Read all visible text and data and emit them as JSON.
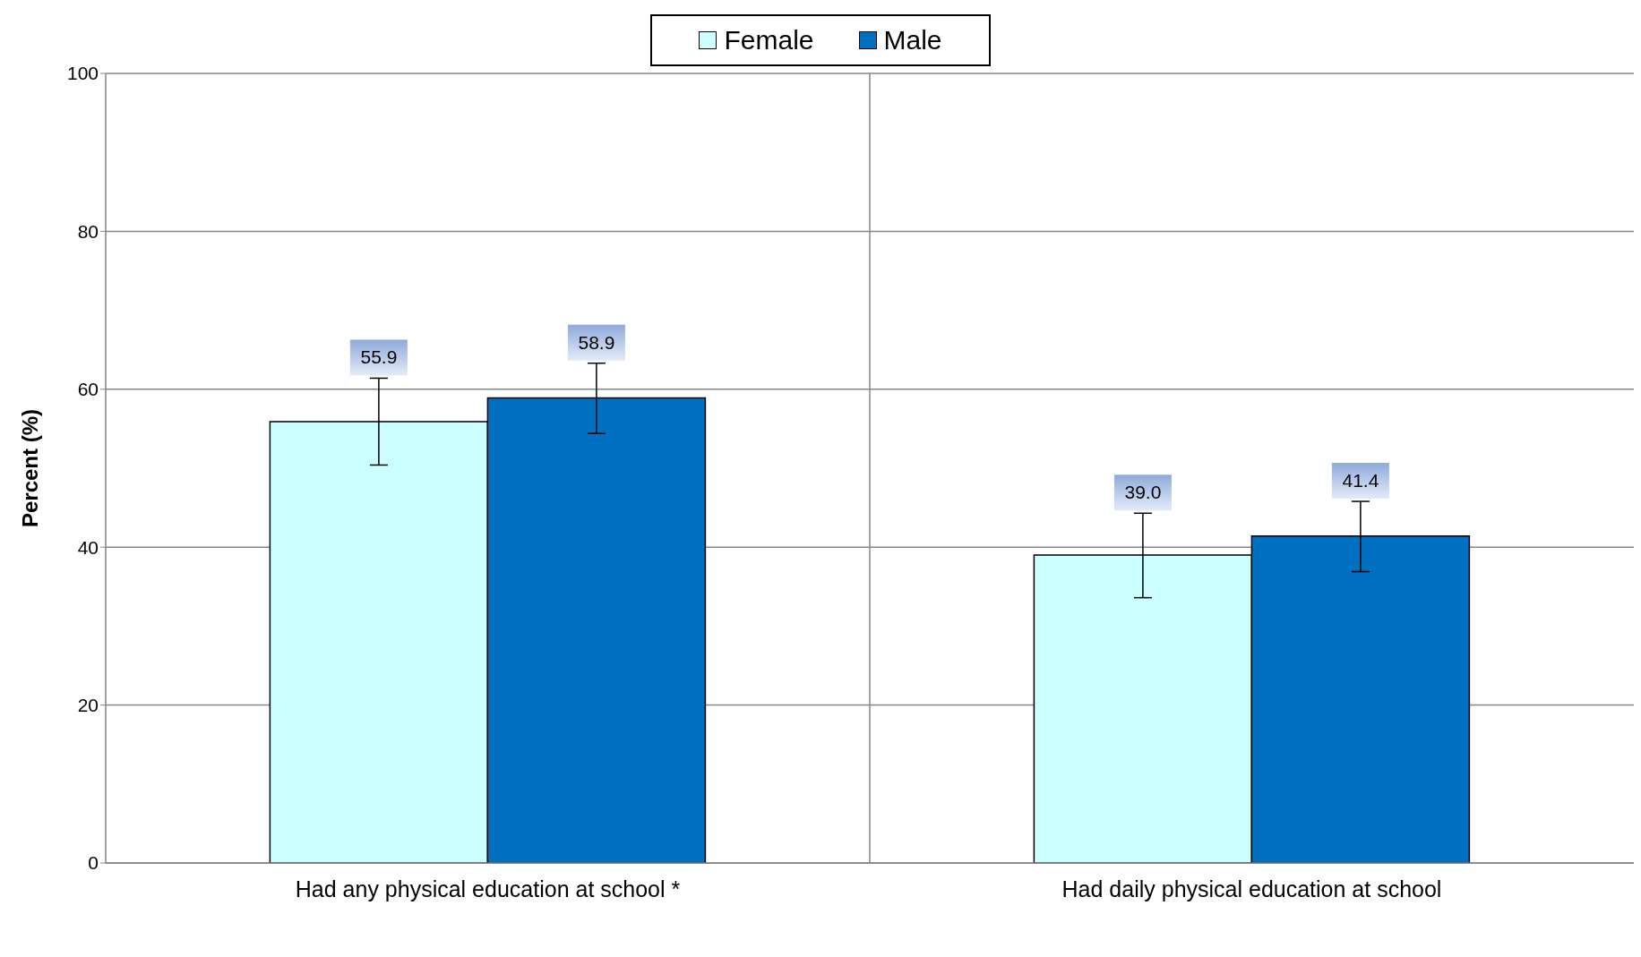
{
  "chart_data": {
    "type": "bar",
    "ylabel": "Percent (%)",
    "categories": [
      "Had any physical education at school *",
      "Had daily physical education at school"
    ],
    "series": [
      {
        "name": "Female",
        "color": "#ccffff",
        "values": [
          55.9,
          39.0
        ],
        "value_labels": [
          "55.9",
          "39.0"
        ],
        "errors": [
          [
            50.4,
            61.4
          ],
          [
            33.6,
            44.3
          ]
        ]
      },
      {
        "name": "Male",
        "color": "#0070c0",
        "values": [
          58.9,
          41.4
        ],
        "value_labels": [
          "58.9",
          "41.4"
        ],
        "errors": [
          [
            54.4,
            63.3
          ],
          [
            36.9,
            45.8
          ]
        ]
      }
    ],
    "ylim": [
      0,
      100
    ],
    "yticks": [
      0,
      20,
      40,
      60,
      80,
      100
    ],
    "grid": true,
    "legend": "top"
  }
}
